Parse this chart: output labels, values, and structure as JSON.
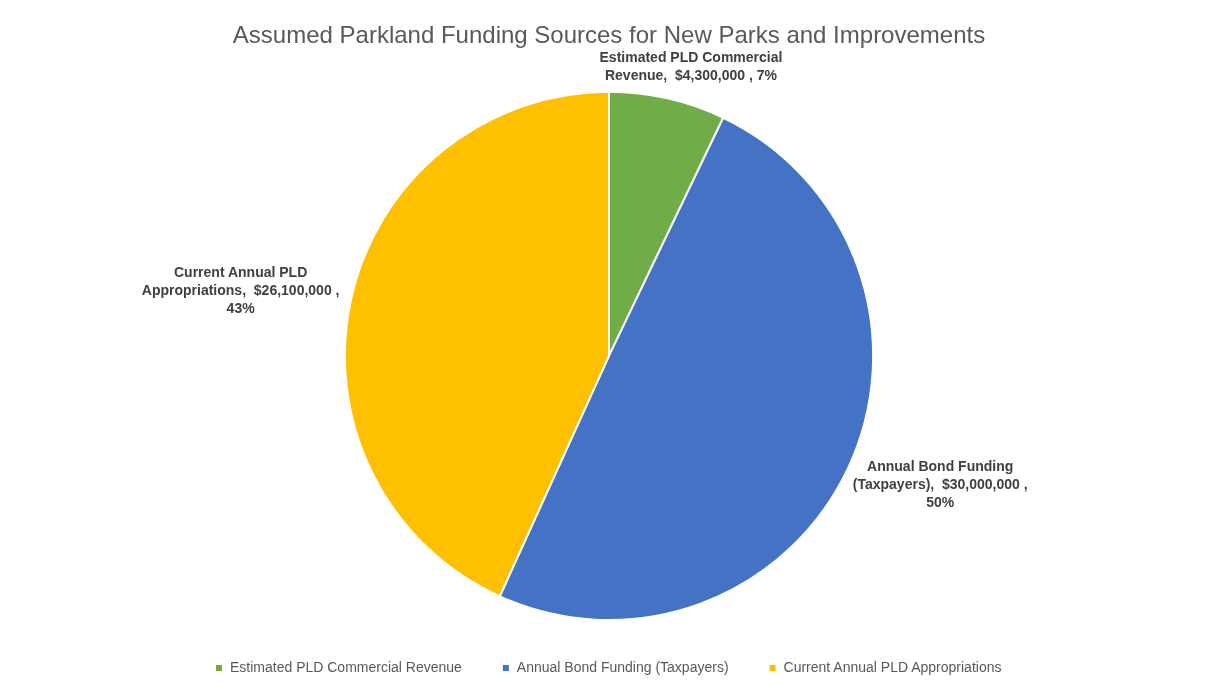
{
  "chart_data": {
    "type": "pie",
    "title": "Assumed Parkland Funding Sources for New Parks and Improvements",
    "categories": [
      "Estimated PLD Commercial Revenue",
      "Annual Bond Funding (Taxpayers)",
      "Current Annual PLD Appropriations"
    ],
    "values": [
      4300000,
      30000000,
      26100000
    ],
    "colors": [
      "#70ad47",
      "#4472c4",
      "#ffc000"
    ],
    "value_labels": [
      "Estimated PLD Commercial Revenue,  $4,300,000 , 7%",
      "Annual Bond Funding (Taxpayers),  $30,000,000 , 50%",
      "Current Annual PLD Appropriations,  $26,100,000 , 43%"
    ],
    "legend": "bottom"
  }
}
